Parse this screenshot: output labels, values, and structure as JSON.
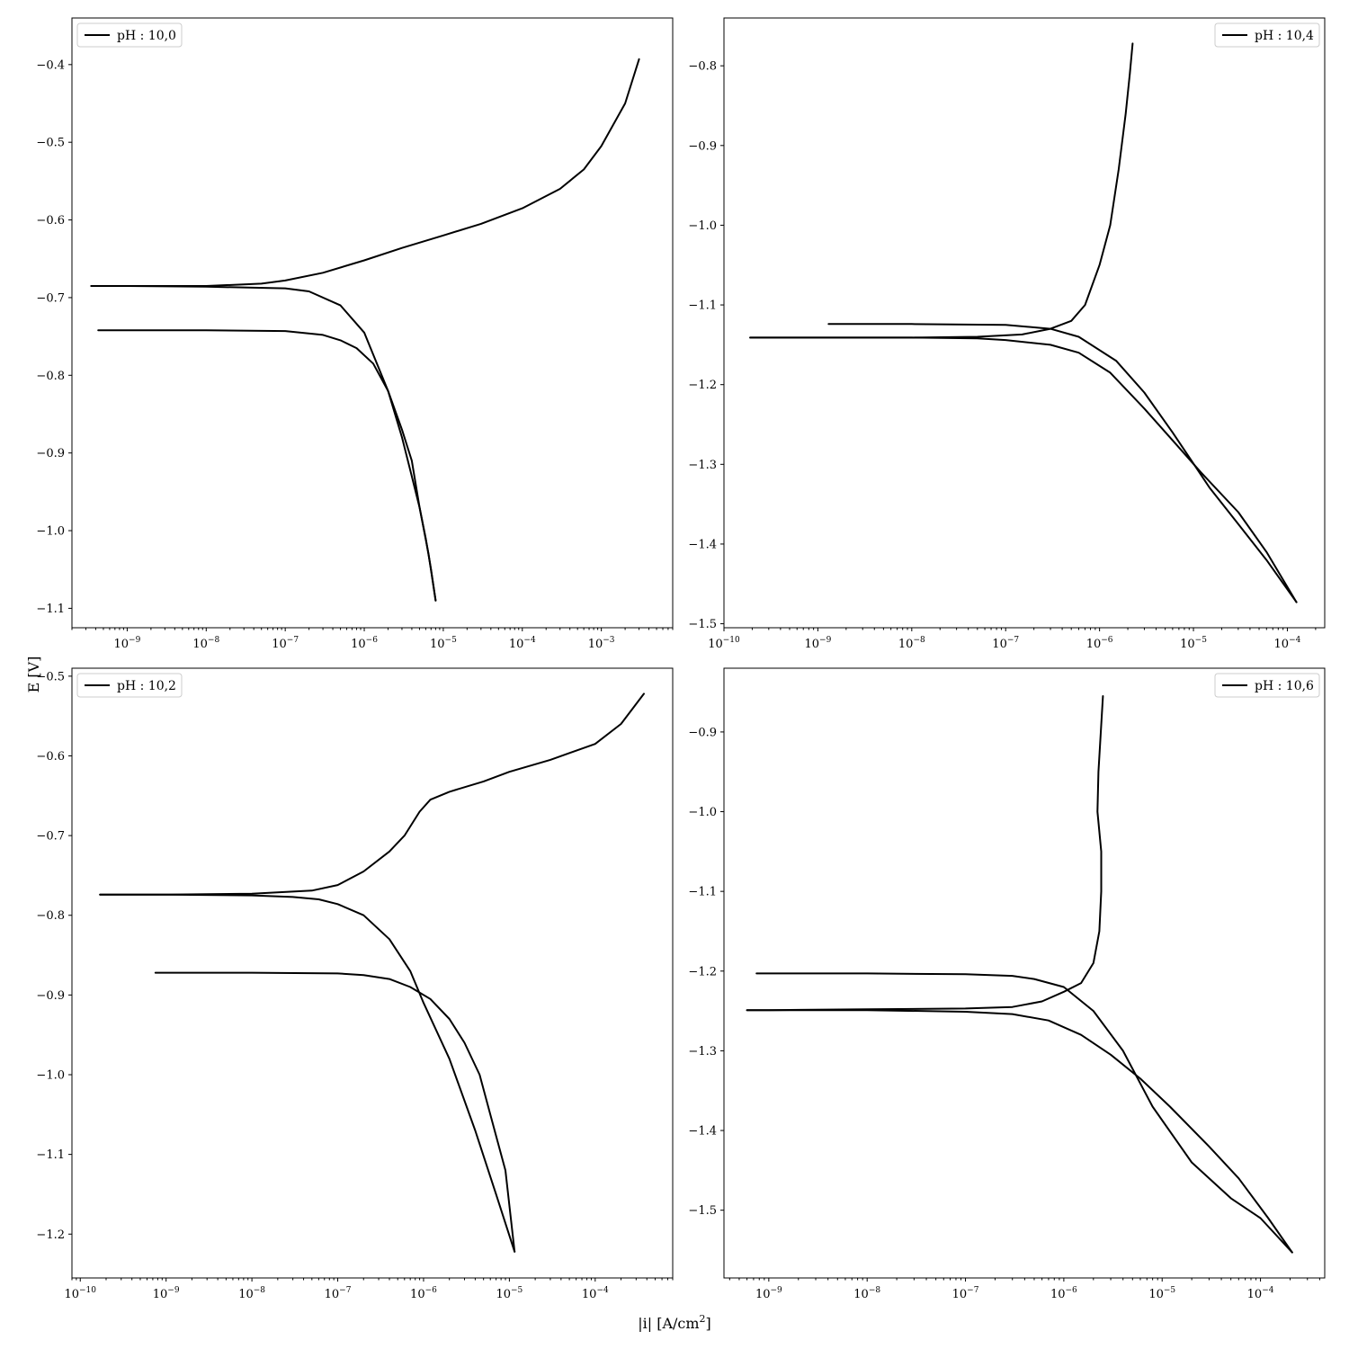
{
  "chart_data": [
    {
      "type": "line",
      "xscale": "log",
      "xlim": [
        2e-10,
        0.008
      ],
      "ylim": [
        -1.125,
        -0.34
      ],
      "yticks": [
        -0.4,
        -0.5,
        -0.6,
        -0.7,
        -0.8,
        -0.9,
        -1.0,
        -1.1
      ],
      "ytick_labels": [
        "−0.4",
        "−0.5",
        "−0.6",
        "−0.7",
        "−0.8",
        "−0.9",
        "−1.0",
        "−1.1"
      ],
      "xtick_exponents": [
        -9,
        -8,
        -7,
        -6,
        -5,
        -4,
        -3
      ],
      "xtick_labels": [
        "10",
        "10",
        "10",
        "10",
        "10",
        "10",
        "10"
      ],
      "legend": "pH : 10,0",
      "legend_loc": "upper left",
      "series": [
        {
          "x": [
            3.5e-10,
            1e-09,
            1e-08,
            1e-07,
            2e-07,
            5e-07,
            1e-06,
            2e-06,
            3e-06,
            4e-06,
            5e-06,
            6e-06,
            7e-06,
            8e-06
          ],
          "y": [
            -0.685,
            -0.685,
            -0.686,
            -0.688,
            -0.692,
            -0.71,
            -0.745,
            -0.82,
            -0.88,
            -0.93,
            -0.97,
            -1.01,
            -1.05,
            -1.09
          ]
        },
        {
          "x": [
            8e-06,
            6.5e-06,
            5e-06,
            4e-06,
            3e-06,
            2e-06,
            1.3e-06,
            8e-07,
            5e-07,
            3e-07,
            1e-07,
            1e-08,
            1e-09,
            4.3e-10
          ],
          "y": [
            -1.09,
            -1.03,
            -0.97,
            -0.91,
            -0.87,
            -0.82,
            -0.785,
            -0.765,
            -0.755,
            -0.748,
            -0.743,
            -0.742,
            -0.742,
            -0.742
          ]
        },
        {
          "x": [
            3.5e-10,
            1e-09,
            1e-08,
            5e-08,
            1e-07,
            3e-07,
            1e-06,
            3e-06,
            1e-05,
            3e-05,
            0.0001,
            0.0003,
            0.0006,
            0.001,
            0.002,
            0.003
          ],
          "y": [
            -0.685,
            -0.685,
            -0.685,
            -0.682,
            -0.678,
            -0.668,
            -0.652,
            -0.636,
            -0.62,
            -0.605,
            -0.585,
            -0.56,
            -0.535,
            -0.505,
            -0.45,
            -0.393
          ]
        }
      ]
    },
    {
      "type": "line",
      "xscale": "log",
      "xlim": [
        1e-10,
        0.00025
      ],
      "ylim": [
        -1.505,
        -0.74
      ],
      "yticks": [
        -0.8,
        -0.9,
        -1.0,
        -1.1,
        -1.2,
        -1.3,
        -1.4,
        -1.5
      ],
      "ytick_labels": [
        "−0.8",
        "−0.9",
        "−1.0",
        "−1.1",
        "−1.2",
        "−1.3",
        "−1.4",
        "−1.5"
      ],
      "xtick_exponents": [
        -10,
        -9,
        -8,
        -7,
        -6,
        -5,
        -4
      ],
      "xtick_labels": [
        "10",
        "10",
        "10",
        "10",
        "10",
        "10",
        "10"
      ],
      "legend": "pH : 10,4",
      "legend_loc": "upper right",
      "series": [
        {
          "x": [
            1.9e-10,
            1e-09,
            1e-08,
            5e-08,
            1e-07,
            3e-07,
            6e-07,
            1.3e-06,
            3e-06,
            6e-06,
            1.2e-05,
            3e-05,
            6e-05,
            0.000125
          ],
          "y": [
            -1.141,
            -1.141,
            -1.141,
            -1.142,
            -1.144,
            -1.15,
            -1.16,
            -1.185,
            -1.23,
            -1.27,
            -1.31,
            -1.36,
            -1.41,
            -1.473
          ]
        },
        {
          "x": [
            0.000125,
            6e-05,
            3e-05,
            1.5e-05,
            6e-06,
            3e-06,
            1.5e-06,
            6e-07,
            3e-07,
            1e-07,
            1e-08,
            1.3e-09
          ],
          "y": [
            -1.473,
            -1.42,
            -1.375,
            -1.33,
            -1.26,
            -1.21,
            -1.17,
            -1.14,
            -1.13,
            -1.125,
            -1.124,
            -1.124
          ]
        },
        {
          "x": [
            1.9e-10,
            1e-09,
            1e-08,
            5e-08,
            1.5e-07,
            3e-07,
            5e-07,
            7e-07,
            1e-06,
            1.3e-06,
            1.6e-06,
            1.9e-06,
            2.1e-06,
            2.25e-06
          ],
          "y": [
            -1.141,
            -1.141,
            -1.141,
            -1.14,
            -1.137,
            -1.13,
            -1.12,
            -1.1,
            -1.05,
            -1.0,
            -0.93,
            -0.86,
            -0.81,
            -0.772
          ]
        }
      ]
    },
    {
      "type": "line",
      "xscale": "log",
      "xlim": [
        8e-11,
        0.0008
      ],
      "ylim": [
        -1.255,
        -0.49
      ],
      "yticks": [
        -0.5,
        -0.6,
        -0.7,
        -0.8,
        -0.9,
        -1.0,
        -1.1,
        -1.2
      ],
      "ytick_labels": [
        "−0.5",
        "−0.6",
        "−0.7",
        "−0.8",
        "−0.9",
        "−1.0",
        "−1.1",
        "−1.2"
      ],
      "xtick_exponents": [
        -10,
        -9,
        -8,
        -7,
        -6,
        -5,
        -4
      ],
      "xtick_labels": [
        "10",
        "10",
        "10",
        "10",
        "10",
        "10",
        "10"
      ],
      "legend": "pH : 10,2",
      "legend_loc": "upper left",
      "series": [
        {
          "x": [
            1.7e-10,
            1e-09,
            1e-08,
            3e-08,
            6e-08,
            1e-07,
            2e-07,
            4e-07,
            7e-07,
            1e-06,
            2e-06,
            4e-06,
            7e-06,
            1.15e-05
          ],
          "y": [
            -0.774,
            -0.774,
            -0.775,
            -0.777,
            -0.78,
            -0.786,
            -0.8,
            -0.83,
            -0.87,
            -0.91,
            -0.98,
            -1.07,
            -1.15,
            -1.222
          ]
        },
        {
          "x": [
            1.15e-05,
            9e-06,
            6e-06,
            4.5e-06,
            3e-06,
            2e-06,
            1.2e-06,
            7e-07,
            4e-07,
            2e-07,
            1e-07,
            1e-08,
            7.5e-10
          ],
          "y": [
            -1.222,
            -1.12,
            -1.05,
            -1.0,
            -0.96,
            -0.93,
            -0.905,
            -0.89,
            -0.88,
            -0.875,
            -0.873,
            -0.872,
            -0.872
          ]
        },
        {
          "x": [
            1.7e-10,
            1e-09,
            1e-08,
            5e-08,
            1e-07,
            2e-07,
            4e-07,
            6e-07,
            9e-07,
            1.2e-06,
            2e-06,
            5e-06,
            1e-05,
            3e-05,
            0.0001,
            0.0002,
            0.00037
          ],
          "y": [
            -0.774,
            -0.774,
            -0.773,
            -0.769,
            -0.762,
            -0.745,
            -0.72,
            -0.7,
            -0.67,
            -0.655,
            -0.645,
            -0.632,
            -0.62,
            -0.605,
            -0.585,
            -0.56,
            -0.522
          ]
        }
      ]
    },
    {
      "type": "line",
      "xscale": "log",
      "xlim": [
        3.5e-10,
        0.00045
      ],
      "ylim": [
        -1.585,
        -0.82
      ],
      "yticks": [
        -0.9,
        -1.0,
        -1.1,
        -1.2,
        -1.3,
        -1.4,
        -1.5
      ],
      "ytick_labels": [
        "−0.9",
        "−1.0",
        "−1.1",
        "−1.2",
        "−1.3",
        "−1.4",
        "−1.5"
      ],
      "xtick_exponents": [
        -9,
        -8,
        -7,
        -6,
        -5,
        -4
      ],
      "xtick_labels": [
        "10",
        "10",
        "10",
        "10",
        "10",
        "10"
      ],
      "legend": "pH : 10,6",
      "legend_loc": "upper right",
      "series": [
        {
          "x": [
            6e-10,
            1e-09,
            1e-08,
            1e-07,
            3e-07,
            7e-07,
            1.5e-06,
            3e-06,
            6e-06,
            1.2e-05,
            3e-05,
            6e-05,
            0.00012,
            0.00021
          ],
          "y": [
            -1.249,
            -1.249,
            -1.249,
            -1.251,
            -1.254,
            -1.262,
            -1.28,
            -1.305,
            -1.335,
            -1.37,
            -1.42,
            -1.46,
            -1.51,
            -1.553
          ]
        },
        {
          "x": [
            0.00021,
            0.0001,
            5e-05,
            2e-05,
            8e-06,
            4e-06,
            2e-06,
            1e-06,
            5e-07,
            3e-07,
            1e-07,
            1e-08,
            7.5e-10
          ],
          "y": [
            -1.553,
            -1.51,
            -1.485,
            -1.44,
            -1.37,
            -1.3,
            -1.25,
            -1.22,
            -1.21,
            -1.206,
            -1.204,
            -1.203,
            -1.203
          ]
        },
        {
          "x": [
            6e-10,
            1e-09,
            1e-08,
            1e-07,
            3e-07,
            6e-07,
            1e-06,
            1.5e-06,
            2e-06,
            2.3e-06,
            2.4e-06,
            2.4e-06,
            2.2e-06,
            2.25e-06,
            2.5e-06
          ],
          "y": [
            -1.249,
            -1.249,
            -1.248,
            -1.247,
            -1.245,
            -1.238,
            -1.226,
            -1.215,
            -1.19,
            -1.15,
            -1.1,
            -1.05,
            -1.0,
            -0.95,
            -0.855
          ]
        }
      ]
    }
  ],
  "labels": {
    "ylabel": "E [V]",
    "xlabel_base": "|i| [A/cm",
    "xlabel_sup": "2",
    "xlabel_end": "]"
  }
}
